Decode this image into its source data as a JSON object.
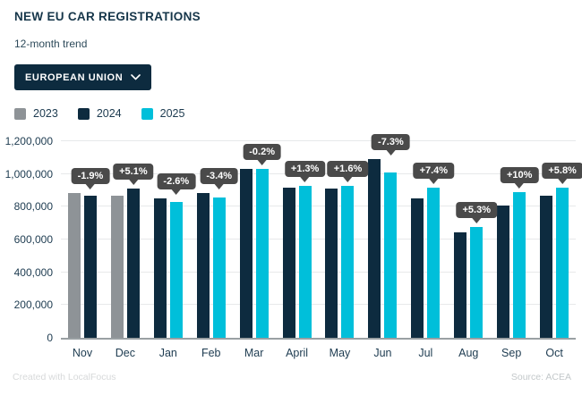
{
  "header": {
    "title": "NEW EU CAR REGISTRATIONS",
    "subtitle": "12-month trend",
    "region_selector": {
      "label": "EUROPEAN UNION"
    }
  },
  "legend": {
    "items": [
      {
        "label": "2023",
        "color": "#8e9397"
      },
      {
        "label": "2024",
        "color": "#0d2b3f"
      },
      {
        "label": "2025",
        "color": "#00bfda"
      }
    ]
  },
  "chart_data": {
    "type": "bar",
    "title": "NEW EU CAR REGISTRATIONS",
    "subtitle": "12-month trend",
    "categories": [
      "Nov",
      "Dec",
      "Jan",
      "Feb",
      "Mar",
      "April",
      "May",
      "Jun",
      "Jul",
      "Aug",
      "Sep",
      "Oct"
    ],
    "series": [
      {
        "name": "2023",
        "color": "#8e9397",
        "values": [
          886000,
          867000,
          null,
          null,
          null,
          null,
          null,
          null,
          null,
          null,
          null,
          null
        ]
      },
      {
        "name": "2024",
        "color": "#0d2b3f",
        "values": [
          870000,
          911000,
          852000,
          884000,
          1032000,
          914000,
          912000,
          1090000,
          852000,
          644000,
          809000,
          866000
        ]
      },
      {
        "name": "2025",
        "color": "#00bfda",
        "values": [
          null,
          null,
          831000,
          854000,
          1030000,
          925000,
          927000,
          1010000,
          915000,
          678000,
          889000,
          917000
        ]
      }
    ],
    "change_labels": [
      "-1.9%",
      "+5.1%",
      "-2.6%",
      "-3.4%",
      "-0.2%",
      "+1.3%",
      "+1.6%",
      "-7.3%",
      "+7.4%",
      "+5.3%",
      "+10%",
      "+5.8%"
    ],
    "xlabel": "",
    "ylabel": "",
    "ylim": [
      0,
      1200000
    ],
    "y_tick_step": 200000,
    "y_tick_labels": [
      "0",
      "200,000",
      "400,000",
      "600,000",
      "800,000",
      "1,000,000",
      "1,200,000"
    ],
    "grid": true,
    "legend_position": "top-left",
    "tooltip_bg": "#4a4a4a",
    "tooltip_text_color": "#ffffff"
  },
  "footer": {
    "left": "Created with LocalFocus",
    "right": "Source: ACEA"
  }
}
